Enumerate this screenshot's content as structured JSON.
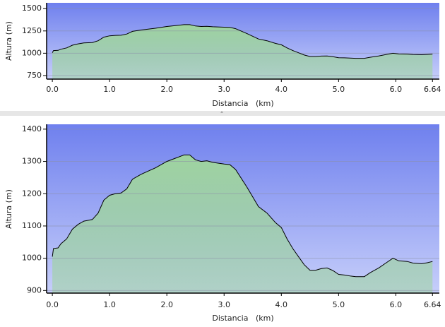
{
  "chart_data": [
    {
      "type": "area",
      "xlabel": "Distancia   (km)",
      "ylabel": "Altura (m)",
      "color": "#9fd49f",
      "grid": true,
      "x": [
        0.0,
        0.02,
        0.1,
        0.15,
        0.25,
        0.35,
        0.45,
        0.55,
        0.7,
        0.8,
        0.9,
        1.0,
        1.1,
        1.2,
        1.3,
        1.4,
        1.55,
        1.7,
        1.8,
        2.0,
        2.15,
        2.3,
        2.4,
        2.5,
        2.6,
        2.7,
        2.8,
        3.0,
        3.1,
        3.2,
        3.4,
        3.6,
        3.75,
        3.9,
        4.0,
        4.1,
        4.2,
        4.3,
        4.4,
        4.5,
        4.6,
        4.7,
        4.8,
        4.9,
        5.0,
        5.1,
        5.2,
        5.3,
        5.45,
        5.55,
        5.7,
        5.85,
        5.95,
        6.05,
        6.2,
        6.3,
        6.45,
        6.55,
        6.64
      ],
      "values": [
        1005,
        1030,
        1032,
        1045,
        1060,
        1090,
        1105,
        1115,
        1120,
        1140,
        1180,
        1195,
        1200,
        1202,
        1215,
        1245,
        1260,
        1272,
        1280,
        1300,
        1310,
        1320,
        1320,
        1305,
        1300,
        1302,
        1297,
        1292,
        1290,
        1275,
        1220,
        1160,
        1140,
        1110,
        1095,
        1060,
        1030,
        1005,
        980,
        963,
        963,
        968,
        970,
        962,
        950,
        948,
        945,
        943,
        943,
        955,
        970,
        988,
        1000,
        992,
        990,
        985,
        983,
        986,
        990
      ],
      "xlim": [
        -0.1,
        6.76
      ],
      "ylim": [
        710,
        1565
      ],
      "xticks": [
        {
          "value": 0,
          "label": "0.0"
        },
        {
          "value": 1,
          "label": "1.0"
        },
        {
          "value": 2,
          "label": "2.0"
        },
        {
          "value": 3,
          "label": "3.0"
        },
        {
          "value": 4,
          "label": "4.0"
        },
        {
          "value": 5,
          "label": "5.0"
        },
        {
          "value": 6,
          "label": "6.0"
        },
        6.64
      ],
      "yticks": [
        750,
        1000,
        1250,
        1500
      ]
    },
    {
      "type": "area",
      "xlabel": "Distancia   (km)",
      "ylabel": "Altura (m)",
      "color": "#9fd49f",
      "grid": true,
      "x": [
        0.0,
        0.02,
        0.1,
        0.15,
        0.25,
        0.35,
        0.45,
        0.55,
        0.7,
        0.8,
        0.9,
        1.0,
        1.1,
        1.2,
        1.3,
        1.4,
        1.55,
        1.7,
        1.8,
        2.0,
        2.15,
        2.3,
        2.4,
        2.5,
        2.6,
        2.7,
        2.8,
        3.0,
        3.1,
        3.2,
        3.4,
        3.6,
        3.75,
        3.9,
        4.0,
        4.1,
        4.2,
        4.3,
        4.4,
        4.5,
        4.6,
        4.7,
        4.8,
        4.9,
        5.0,
        5.1,
        5.2,
        5.3,
        5.45,
        5.55,
        5.7,
        5.85,
        5.95,
        6.05,
        6.2,
        6.3,
        6.45,
        6.55,
        6.64
      ],
      "values": [
        1005,
        1030,
        1032,
        1045,
        1060,
        1090,
        1105,
        1115,
        1120,
        1140,
        1180,
        1195,
        1200,
        1202,
        1215,
        1245,
        1260,
        1272,
        1280,
        1300,
        1310,
        1320,
        1320,
        1305,
        1300,
        1302,
        1297,
        1292,
        1290,
        1275,
        1220,
        1160,
        1140,
        1110,
        1095,
        1060,
        1030,
        1005,
        980,
        963,
        963,
        968,
        970,
        962,
        950,
        948,
        945,
        943,
        943,
        955,
        970,
        988,
        1000,
        992,
        990,
        985,
        983,
        986,
        990
      ],
      "xlim": [
        -0.1,
        6.76
      ],
      "ylim": [
        892,
        1415
      ],
      "xticks": [
        {
          "value": 0,
          "label": "0.0"
        },
        {
          "value": 1,
          "label": "1.0"
        },
        {
          "value": 2,
          "label": "2.0"
        },
        {
          "value": 3,
          "label": "3.0"
        },
        {
          "value": 4,
          "label": "4.0"
        },
        {
          "value": 5,
          "label": "5.0"
        },
        {
          "value": 6,
          "label": "6.0"
        },
        6.64
      ],
      "yticks": [
        900,
        1000,
        1100,
        1200,
        1300,
        1400
      ]
    }
  ]
}
